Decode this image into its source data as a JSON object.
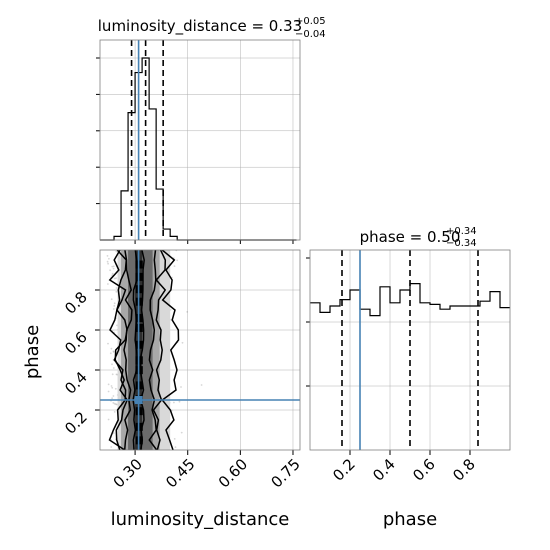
{
  "chart_data": [
    {
      "panel": "luminosity_distance-marginal",
      "type": "histogram",
      "title": {
        "main": "luminosity_distance = 0.33",
        "sup": "+0.05",
        "sub": "−0.04"
      },
      "xlim": [
        0.2,
        0.77
      ],
      "bin_edges": [
        0.2,
        0.22,
        0.24,
        0.26,
        0.28,
        0.3,
        0.32,
        0.34,
        0.36,
        0.38,
        0.4,
        0.42,
        0.44,
        0.46,
        0.48,
        0.5,
        0.52,
        0.54,
        0.56,
        0.58,
        0.6,
        0.62,
        0.64,
        0.66,
        0.68,
        0.7,
        0.72,
        0.74,
        0.76
      ],
      "values": [
        0,
        0,
        0.02,
        0.27,
        0.7,
        0.92,
        1.0,
        0.72,
        0.28,
        0.06,
        0.02,
        0,
        0,
        0,
        0,
        0,
        0,
        0,
        0,
        0,
        0,
        0,
        0,
        0,
        0,
        0,
        0,
        0
      ],
      "quantiles": [
        0.29,
        0.33,
        0.38
      ],
      "truth": 0.31,
      "grid": true
    },
    {
      "panel": "phase-marginal",
      "type": "histogram",
      "title": {
        "main": "phase = 0.50",
        "sup": "+0.34",
        "sub": "−0.34"
      },
      "xlim": [
        0.0,
        1.0
      ],
      "xticks": [
        0.2,
        0.4,
        0.6,
        0.8
      ],
      "bin_edges": [
        0.0,
        0.05,
        0.1,
        0.15,
        0.2,
        0.25,
        0.3,
        0.35,
        0.4,
        0.45,
        0.5,
        0.55,
        0.6,
        0.65,
        0.7,
        0.75,
        0.8,
        0.85,
        0.9,
        0.95,
        1.0
      ],
      "values": [
        0.92,
        0.86,
        0.9,
        0.94,
        1.0,
        0.88,
        0.84,
        1.02,
        0.92,
        1.0,
        1.04,
        0.92,
        0.91,
        0.88,
        0.9,
        0.9,
        0.9,
        0.93,
        0.99,
        0.89
      ],
      "quantiles": [
        0.16,
        0.5,
        0.84
      ],
      "truth": 0.25,
      "grid": true
    },
    {
      "panel": "luminosity_distance-phase-2d",
      "type": "contour-scatter",
      "xlabel": "luminosity_distance",
      "ylabel": "phase",
      "xlim": [
        0.2,
        0.77
      ],
      "ylim": [
        0.0,
        1.0
      ],
      "xticks": [
        0.3,
        0.45,
        0.6,
        0.75
      ],
      "xtick_labels": [
        "0.30",
        "0.45",
        "0.60",
        "0.75"
      ],
      "yticks": [
        0.2,
        0.4,
        0.6,
        0.8
      ],
      "ytick_labels": [
        "0.2",
        "0.4",
        "0.6",
        "0.8"
      ],
      "truth": {
        "x": 0.31,
        "y": 0.25
      },
      "contour_x_bounds": [
        [
          0.3,
          0.32
        ],
        [
          0.28,
          0.35
        ],
        [
          0.26,
          0.37
        ],
        [
          0.25,
          0.4
        ]
      ],
      "scatter_x_range": [
        0.22,
        0.52
      ],
      "grid": true
    }
  ],
  "colors": {
    "truth": "#4682b4",
    "line": "#000000",
    "grid": "#b0b0b0",
    "spine": "#808080",
    "scatter": "#8c8c8c"
  },
  "phase_xlabel": "phase"
}
